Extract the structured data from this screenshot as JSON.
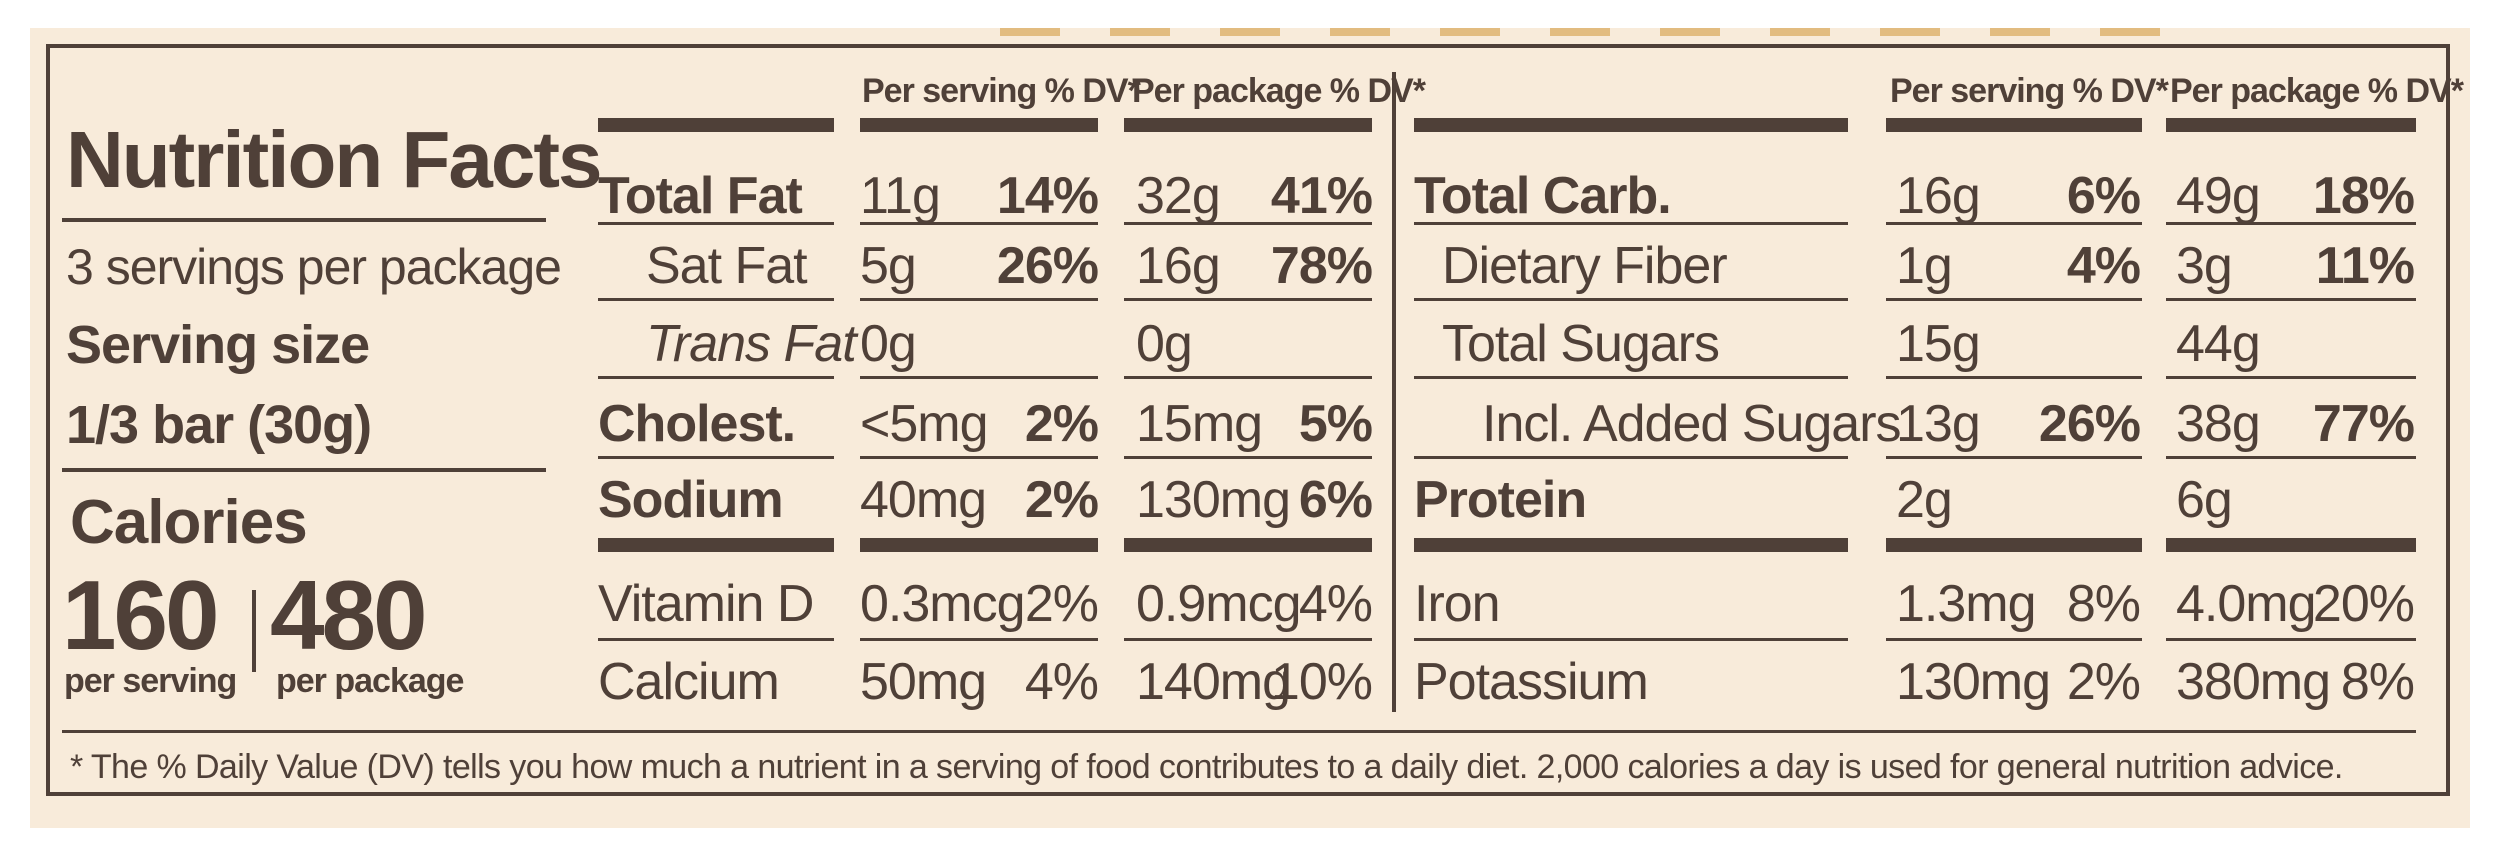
{
  "title": "Nutrition Facts",
  "servings_per_package": "3 servings per package",
  "serving_size_label": "Serving size",
  "serving_size_value": "1/3 bar (30g)",
  "calories_label": "Calories",
  "calories_per_serving": "160",
  "calories_per_serving_label": "per serving",
  "calories_per_package": "480",
  "calories_per_package_label": "per package",
  "header_per_serving": "Per serving % DV*",
  "header_per_package": "Per package % DV*",
  "left_rows": [
    {
      "name": "Total Fat",
      "serving_amount": "11g",
      "serving_dv": "14%",
      "package_amount": "32g",
      "package_dv": "41%"
    },
    {
      "name": "Sat Fat",
      "serving_amount": "5g",
      "serving_dv": "26%",
      "package_amount": "16g",
      "package_dv": "78%"
    },
    {
      "name": "Trans Fat",
      "serving_amount": "0g",
      "serving_dv": "",
      "package_amount": "0g",
      "package_dv": ""
    },
    {
      "name": "Cholest.",
      "serving_amount": "<5mg",
      "serving_dv": "2%",
      "package_amount": "15mg",
      "package_dv": "5%"
    },
    {
      "name": "Sodium",
      "serving_amount": "40mg",
      "serving_dv": "2%",
      "package_amount": "130mg",
      "package_dv": "6%"
    },
    {
      "name": "Vitamin D",
      "serving_amount": "0.3mcg",
      "serving_dv": "2%",
      "package_amount": "0.9mcg",
      "package_dv": "4%"
    },
    {
      "name": "Calcium",
      "serving_amount": "50mg",
      "serving_dv": "4%",
      "package_amount": "140mg",
      "package_dv": "10%"
    }
  ],
  "right_rows": [
    {
      "name": "Total Carb.",
      "serving_amount": "16g",
      "serving_dv": "6%",
      "package_amount": "49g",
      "package_dv": "18%"
    },
    {
      "name": "Dietary Fiber",
      "serving_amount": "1g",
      "serving_dv": "4%",
      "package_amount": "3g",
      "package_dv": "11%"
    },
    {
      "name": "Total Sugars",
      "serving_amount": "15g",
      "serving_dv": "",
      "package_amount": "44g",
      "package_dv": ""
    },
    {
      "name": "Incl. Added Sugars",
      "serving_amount": "13g",
      "serving_dv": "26%",
      "package_amount": "38g",
      "package_dv": "77%"
    },
    {
      "name": "Protein",
      "serving_amount": "2g",
      "serving_dv": "",
      "package_amount": "6g",
      "package_dv": ""
    },
    {
      "name": "Iron",
      "serving_amount": "1.3mg",
      "serving_dv": "8%",
      "package_amount": "4.0mg",
      "package_dv": "20%"
    },
    {
      "name": "Potassium",
      "serving_amount": "130mg",
      "serving_dv": "2%",
      "package_amount": "380mg",
      "package_dv": "8%"
    }
  ],
  "footnote": "* The % Daily Value (DV) tells you how much a nutrient in a serving of food contributes to a daily diet. 2,000 calories a day is used for general nutrition advice.",
  "colors": {
    "ink": "#4f4038",
    "background": "#f8ebda"
  }
}
